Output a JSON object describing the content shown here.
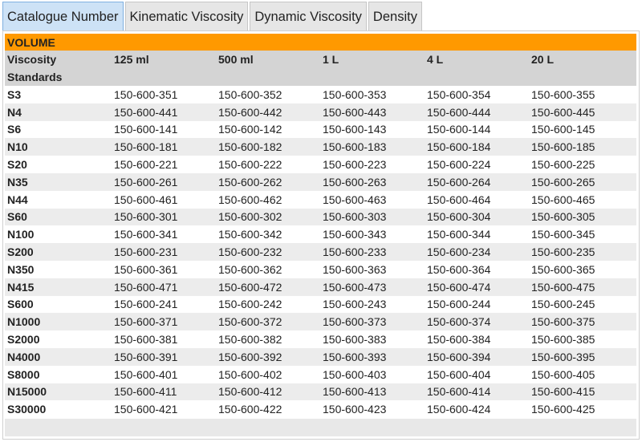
{
  "tabs": [
    "Catalogue Number",
    "Kinematic Viscosity",
    "Dynamic Viscosity",
    "Density"
  ],
  "table": {
    "section": "VOLUME",
    "columns": [
      "Viscosity Standards",
      "125 ml",
      "500 ml",
      "1 L",
      "4 L",
      "20 L"
    ],
    "rows": [
      [
        "S3",
        "150-600-351",
        "150-600-352",
        "150-600-353",
        "150-600-354",
        "150-600-355"
      ],
      [
        "N4",
        "150-600-441",
        "150-600-442",
        "150-600-443",
        "150-600-444",
        "150-600-445"
      ],
      [
        "S6",
        "150-600-141",
        "150-600-142",
        "150-600-143",
        "150-600-144",
        "150-600-145"
      ],
      [
        "N10",
        "150-600-181",
        "150-600-182",
        "150-600-183",
        "150-600-184",
        "150-600-185"
      ],
      [
        "S20",
        "150-600-221",
        "150-600-222",
        "150-600-223",
        "150-600-224",
        "150-600-225"
      ],
      [
        "N35",
        "150-600-261",
        "150-600-262",
        "150-600-263",
        "150-600-264",
        "150-600-265"
      ],
      [
        "N44",
        "150-600-461",
        "150-600-462",
        "150-600-463",
        "150-600-464",
        "150-600-465"
      ],
      [
        "S60",
        "150-600-301",
        "150-600-302",
        "150-600-303",
        "150-600-304",
        "150-600-305"
      ],
      [
        "N100",
        "150-600-341",
        "150-600-342",
        "150-600-343",
        "150-600-344",
        "150-600-345"
      ],
      [
        "S200",
        "150-600-231",
        "150-600-232",
        "150-600-233",
        "150-600-234",
        "150-600-235"
      ],
      [
        "N350",
        "150-600-361",
        "150-600-362",
        "150-600-363",
        "150-600-364",
        "150-600-365"
      ],
      [
        "N415",
        "150-600-471",
        "150-600-472",
        "150-600-473",
        "150-600-474",
        "150-600-475"
      ],
      [
        "S600",
        "150-600-241",
        "150-600-242",
        "150-600-243",
        "150-600-244",
        "150-600-245"
      ],
      [
        "N1000",
        "150-600-371",
        "150-600-372",
        "150-600-373",
        "150-600-374",
        "150-600-375"
      ],
      [
        "S2000",
        "150-600-381",
        "150-600-382",
        "150-600-383",
        "150-600-384",
        "150-600-385"
      ],
      [
        "N4000",
        "150-600-391",
        "150-600-392",
        "150-600-393",
        "150-600-394",
        "150-600-395"
      ],
      [
        "S8000",
        "150-600-401",
        "150-600-402",
        "150-600-403",
        "150-600-404",
        "150-600-405"
      ],
      [
        "N15000",
        "150-600-411",
        "150-600-412",
        "150-600-413",
        "150-600-414",
        "150-600-415"
      ],
      [
        "S30000",
        "150-600-421",
        "150-600-422",
        "150-600-423",
        "150-600-424",
        "150-600-425"
      ]
    ]
  }
}
